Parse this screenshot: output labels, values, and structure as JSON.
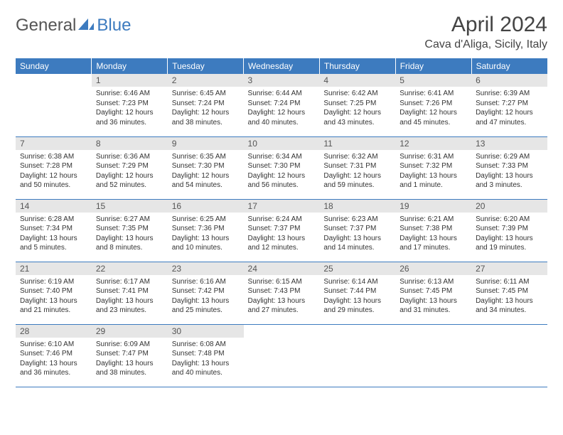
{
  "brand": {
    "name_gray": "General",
    "name_blue": "Blue"
  },
  "header": {
    "title": "April 2024",
    "subtitle": "Cava d'Aliga, Sicily, Italy"
  },
  "style": {
    "header_bg": "#3d7bbf",
    "header_text": "#ffffff",
    "daynum_bg": "#e6e6e6",
    "daynum_text": "#555555",
    "cell_border": "#3d7bbf",
    "body_text": "#333333",
    "title_color": "#444444",
    "logo_gray": "#555555",
    "logo_blue": "#3d7bbf",
    "title_fontsize": 30,
    "subtitle_fontsize": 16,
    "header_fontsize": 12,
    "daynum_fontsize": 12,
    "cell_fontsize": 10
  },
  "weekdays": [
    "Sunday",
    "Monday",
    "Tuesday",
    "Wednesday",
    "Thursday",
    "Friday",
    "Saturday"
  ],
  "weeks": [
    [
      {
        "day": "",
        "sunrise": "",
        "sunset": "",
        "daylight": ""
      },
      {
        "day": "1",
        "sunrise": "Sunrise: 6:46 AM",
        "sunset": "Sunset: 7:23 PM",
        "daylight": "Daylight: 12 hours and 36 minutes."
      },
      {
        "day": "2",
        "sunrise": "Sunrise: 6:45 AM",
        "sunset": "Sunset: 7:24 PM",
        "daylight": "Daylight: 12 hours and 38 minutes."
      },
      {
        "day": "3",
        "sunrise": "Sunrise: 6:44 AM",
        "sunset": "Sunset: 7:24 PM",
        "daylight": "Daylight: 12 hours and 40 minutes."
      },
      {
        "day": "4",
        "sunrise": "Sunrise: 6:42 AM",
        "sunset": "Sunset: 7:25 PM",
        "daylight": "Daylight: 12 hours and 43 minutes."
      },
      {
        "day": "5",
        "sunrise": "Sunrise: 6:41 AM",
        "sunset": "Sunset: 7:26 PM",
        "daylight": "Daylight: 12 hours and 45 minutes."
      },
      {
        "day": "6",
        "sunrise": "Sunrise: 6:39 AM",
        "sunset": "Sunset: 7:27 PM",
        "daylight": "Daylight: 12 hours and 47 minutes."
      }
    ],
    [
      {
        "day": "7",
        "sunrise": "Sunrise: 6:38 AM",
        "sunset": "Sunset: 7:28 PM",
        "daylight": "Daylight: 12 hours and 50 minutes."
      },
      {
        "day": "8",
        "sunrise": "Sunrise: 6:36 AM",
        "sunset": "Sunset: 7:29 PM",
        "daylight": "Daylight: 12 hours and 52 minutes."
      },
      {
        "day": "9",
        "sunrise": "Sunrise: 6:35 AM",
        "sunset": "Sunset: 7:30 PM",
        "daylight": "Daylight: 12 hours and 54 minutes."
      },
      {
        "day": "10",
        "sunrise": "Sunrise: 6:34 AM",
        "sunset": "Sunset: 7:30 PM",
        "daylight": "Daylight: 12 hours and 56 minutes."
      },
      {
        "day": "11",
        "sunrise": "Sunrise: 6:32 AM",
        "sunset": "Sunset: 7:31 PM",
        "daylight": "Daylight: 12 hours and 59 minutes."
      },
      {
        "day": "12",
        "sunrise": "Sunrise: 6:31 AM",
        "sunset": "Sunset: 7:32 PM",
        "daylight": "Daylight: 13 hours and 1 minute."
      },
      {
        "day": "13",
        "sunrise": "Sunrise: 6:29 AM",
        "sunset": "Sunset: 7:33 PM",
        "daylight": "Daylight: 13 hours and 3 minutes."
      }
    ],
    [
      {
        "day": "14",
        "sunrise": "Sunrise: 6:28 AM",
        "sunset": "Sunset: 7:34 PM",
        "daylight": "Daylight: 13 hours and 5 minutes."
      },
      {
        "day": "15",
        "sunrise": "Sunrise: 6:27 AM",
        "sunset": "Sunset: 7:35 PM",
        "daylight": "Daylight: 13 hours and 8 minutes."
      },
      {
        "day": "16",
        "sunrise": "Sunrise: 6:25 AM",
        "sunset": "Sunset: 7:36 PM",
        "daylight": "Daylight: 13 hours and 10 minutes."
      },
      {
        "day": "17",
        "sunrise": "Sunrise: 6:24 AM",
        "sunset": "Sunset: 7:37 PM",
        "daylight": "Daylight: 13 hours and 12 minutes."
      },
      {
        "day": "18",
        "sunrise": "Sunrise: 6:23 AM",
        "sunset": "Sunset: 7:37 PM",
        "daylight": "Daylight: 13 hours and 14 minutes."
      },
      {
        "day": "19",
        "sunrise": "Sunrise: 6:21 AM",
        "sunset": "Sunset: 7:38 PM",
        "daylight": "Daylight: 13 hours and 17 minutes."
      },
      {
        "day": "20",
        "sunrise": "Sunrise: 6:20 AM",
        "sunset": "Sunset: 7:39 PM",
        "daylight": "Daylight: 13 hours and 19 minutes."
      }
    ],
    [
      {
        "day": "21",
        "sunrise": "Sunrise: 6:19 AM",
        "sunset": "Sunset: 7:40 PM",
        "daylight": "Daylight: 13 hours and 21 minutes."
      },
      {
        "day": "22",
        "sunrise": "Sunrise: 6:17 AM",
        "sunset": "Sunset: 7:41 PM",
        "daylight": "Daylight: 13 hours and 23 minutes."
      },
      {
        "day": "23",
        "sunrise": "Sunrise: 6:16 AM",
        "sunset": "Sunset: 7:42 PM",
        "daylight": "Daylight: 13 hours and 25 minutes."
      },
      {
        "day": "24",
        "sunrise": "Sunrise: 6:15 AM",
        "sunset": "Sunset: 7:43 PM",
        "daylight": "Daylight: 13 hours and 27 minutes."
      },
      {
        "day": "25",
        "sunrise": "Sunrise: 6:14 AM",
        "sunset": "Sunset: 7:44 PM",
        "daylight": "Daylight: 13 hours and 29 minutes."
      },
      {
        "day": "26",
        "sunrise": "Sunrise: 6:13 AM",
        "sunset": "Sunset: 7:45 PM",
        "daylight": "Daylight: 13 hours and 31 minutes."
      },
      {
        "day": "27",
        "sunrise": "Sunrise: 6:11 AM",
        "sunset": "Sunset: 7:45 PM",
        "daylight": "Daylight: 13 hours and 34 minutes."
      }
    ],
    [
      {
        "day": "28",
        "sunrise": "Sunrise: 6:10 AM",
        "sunset": "Sunset: 7:46 PM",
        "daylight": "Daylight: 13 hours and 36 minutes."
      },
      {
        "day": "29",
        "sunrise": "Sunrise: 6:09 AM",
        "sunset": "Sunset: 7:47 PM",
        "daylight": "Daylight: 13 hours and 38 minutes."
      },
      {
        "day": "30",
        "sunrise": "Sunrise: 6:08 AM",
        "sunset": "Sunset: 7:48 PM",
        "daylight": "Daylight: 13 hours and 40 minutes."
      },
      {
        "day": "",
        "sunrise": "",
        "sunset": "",
        "daylight": ""
      },
      {
        "day": "",
        "sunrise": "",
        "sunset": "",
        "daylight": ""
      },
      {
        "day": "",
        "sunrise": "",
        "sunset": "",
        "daylight": ""
      },
      {
        "day": "",
        "sunrise": "",
        "sunset": "",
        "daylight": ""
      }
    ]
  ]
}
